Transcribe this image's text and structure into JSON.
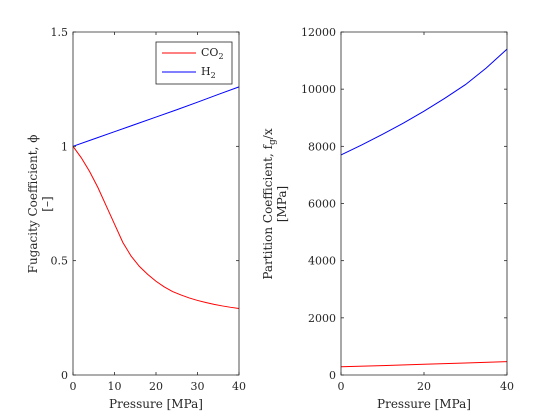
{
  "chart_data": [
    {
      "type": "line",
      "xlabel": "Pressure [MPa]",
      "ylabel": "Fugacity Coefficient, ϕ",
      "ylabel_unit": "[–]",
      "xlim": [
        0,
        40
      ],
      "ylim": [
        0,
        1.5
      ],
      "xticks": [
        0,
        10,
        20,
        30,
        40
      ],
      "yticks": [
        0,
        0.5,
        1,
        1.5
      ],
      "ytick_labels": [
        "0",
        "0.5",
        "1",
        "1.5"
      ],
      "grid": false,
      "legend": "top-right",
      "series": [
        {
          "name": "CO2",
          "color": "#ff0000",
          "x": [
            0,
            2,
            4,
            6,
            8,
            10,
            12,
            14,
            16,
            18,
            20,
            22,
            24,
            26,
            28,
            30,
            32,
            34,
            36,
            38,
            40
          ],
          "y": [
            1.0,
            0.95,
            0.89,
            0.82,
            0.74,
            0.66,
            0.58,
            0.52,
            0.475,
            0.44,
            0.41,
            0.385,
            0.365,
            0.35,
            0.337,
            0.326,
            0.317,
            0.309,
            0.302,
            0.296,
            0.291
          ]
        },
        {
          "name": "H2",
          "color": "#0000ff",
          "x": [
            0,
            5,
            10,
            15,
            20,
            25,
            30,
            35,
            40
          ],
          "y": [
            1.0,
            1.032,
            1.064,
            1.096,
            1.128,
            1.16,
            1.193,
            1.227,
            1.26
          ]
        }
      ]
    },
    {
      "type": "line",
      "xlabel": "Pressure [MPa]",
      "ylabel": "Partition Coefficient, f_g/x",
      "ylabel_unit": "[MPa]",
      "xlim": [
        0,
        40
      ],
      "ylim": [
        0,
        12000
      ],
      "xticks": [
        0,
        20,
        40
      ],
      "yticks": [
        0,
        2000,
        4000,
        6000,
        8000,
        10000,
        12000
      ],
      "ytick_labels": [
        "0",
        "2000",
        "4000",
        "6000",
        "8000",
        "10000",
        "12000"
      ],
      "grid": false,
      "series": [
        {
          "name": "CO2",
          "color": "#ff0000",
          "x": [
            0,
            10,
            20,
            30,
            40
          ],
          "y": [
            290,
            330,
            375,
            420,
            470
          ]
        },
        {
          "name": "H2",
          "color": "#0000ff",
          "x": [
            0,
            5,
            10,
            15,
            20,
            25,
            30,
            35,
            40
          ],
          "y": [
            7700,
            8050,
            8420,
            8810,
            9230,
            9680,
            10160,
            10740,
            11400
          ]
        }
      ]
    }
  ],
  "legend": {
    "co2_label": "CO",
    "co2_sub": "2",
    "h2_label": "H",
    "h2_sub": "2"
  }
}
